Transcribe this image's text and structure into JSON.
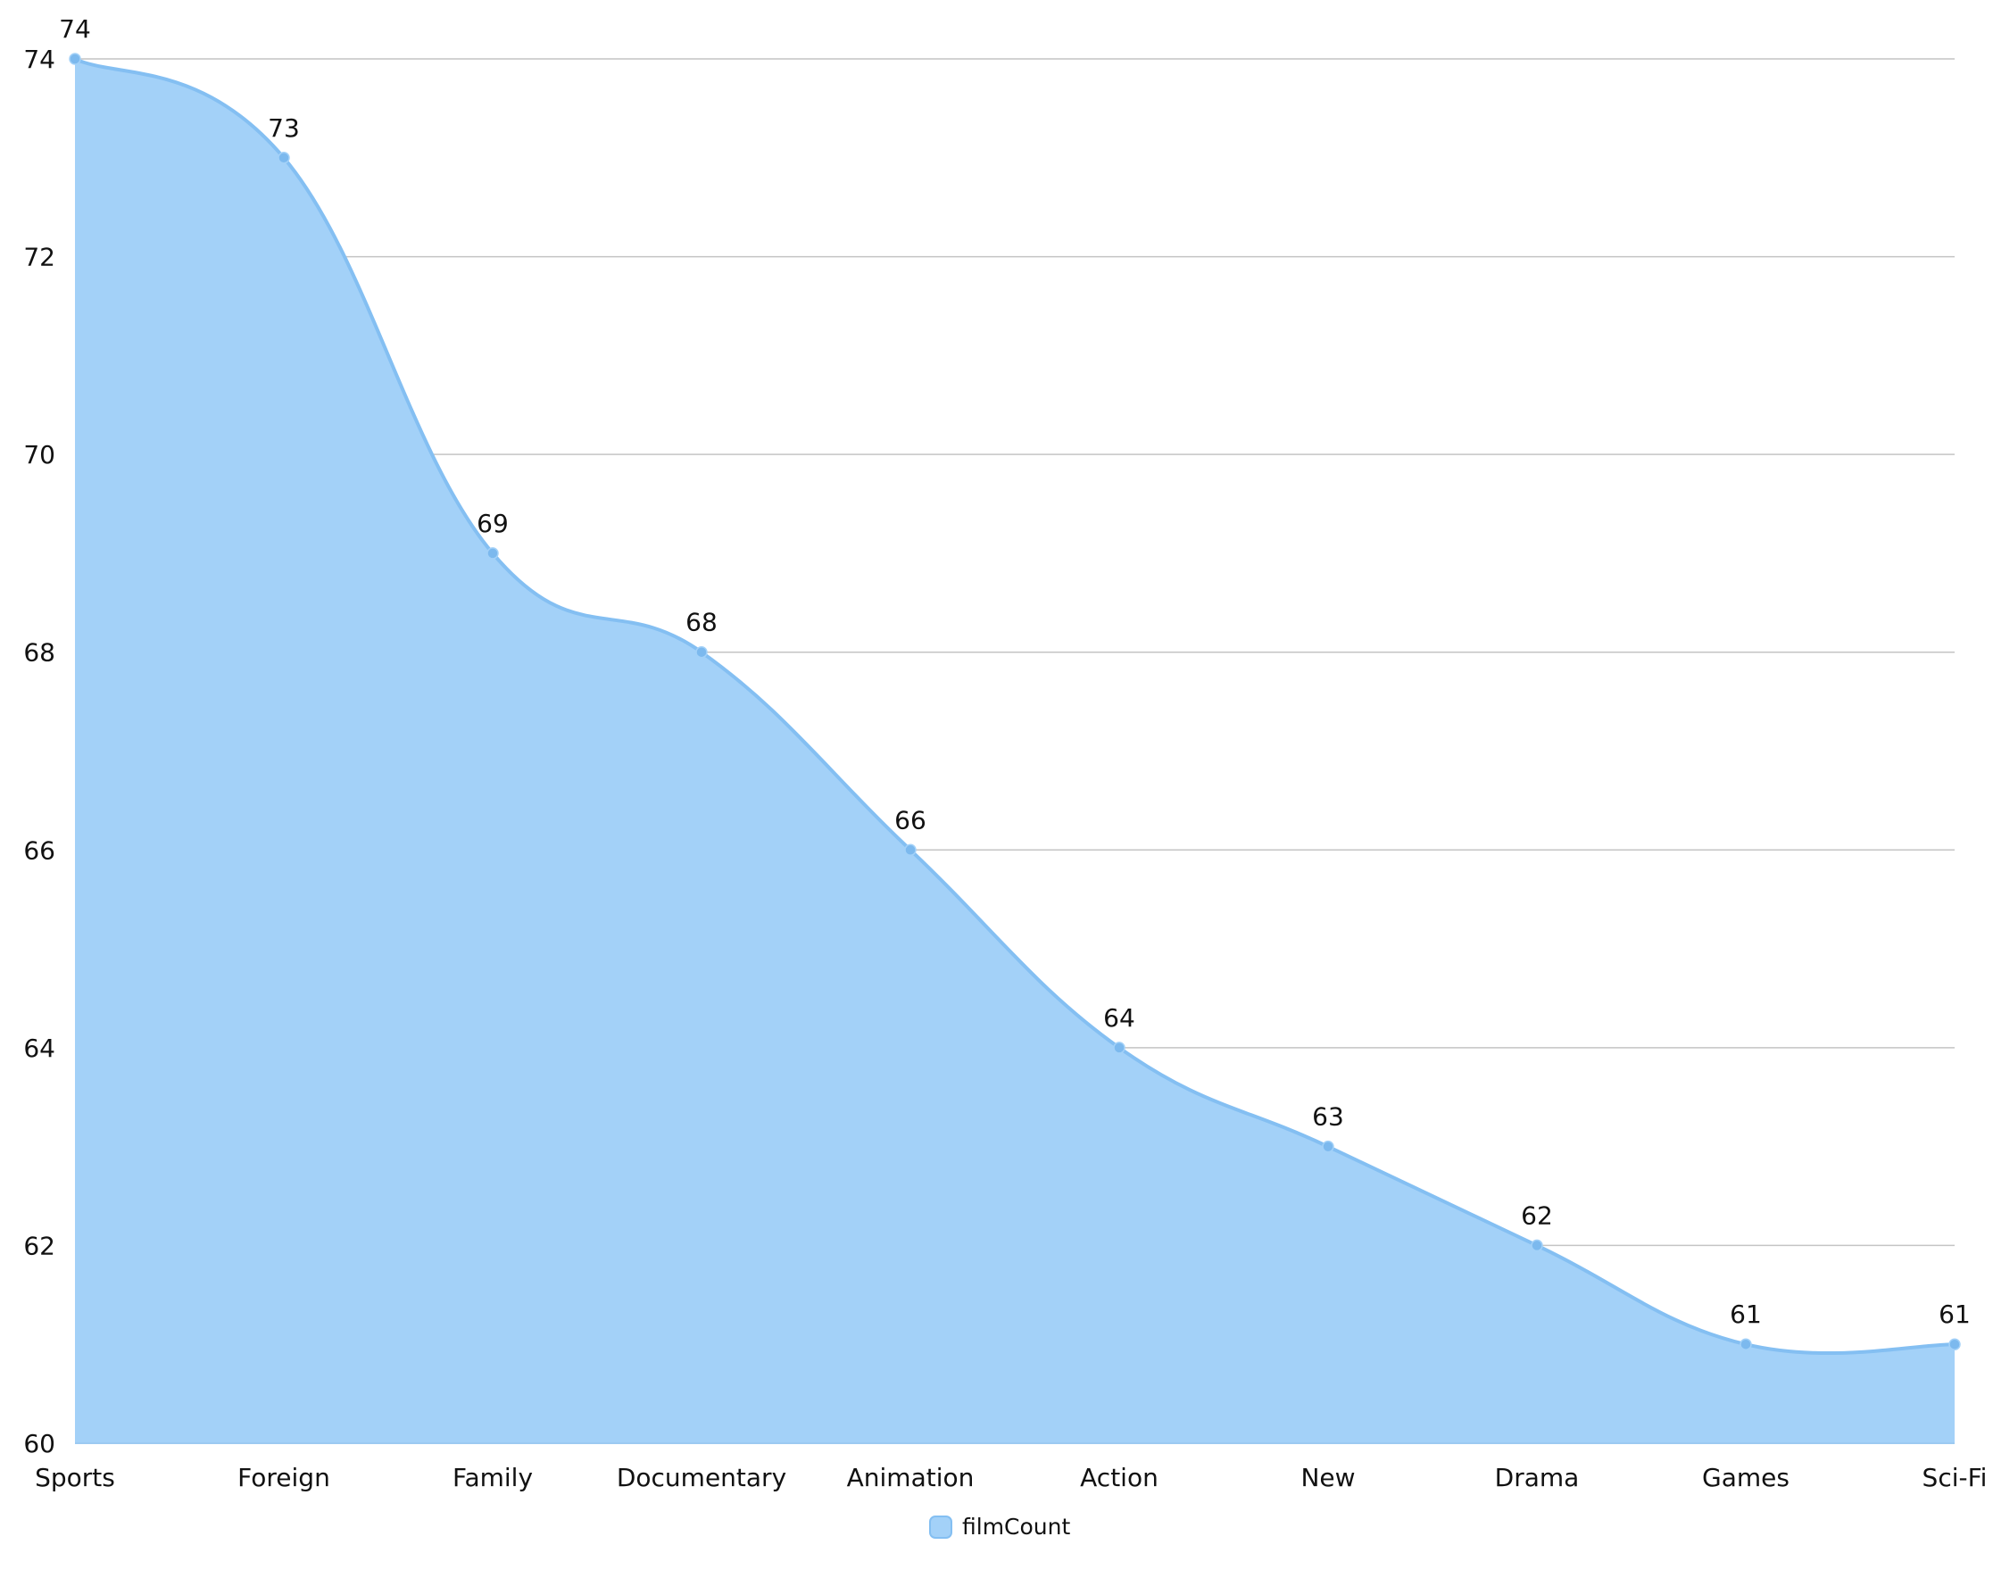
{
  "chart_data": {
    "type": "area",
    "categories": [
      "Sports",
      "Foreign",
      "Family",
      "Documentary",
      "Animation",
      "Action",
      "New",
      "Drama",
      "Games",
      "Sci-Fi"
    ],
    "series": [
      {
        "name": "filmCount",
        "values": [
          74,
          73,
          69,
          68,
          66,
          64,
          63,
          62,
          61,
          61
        ]
      }
    ],
    "y_ticks": [
      "60",
      "62",
      "64",
      "66",
      "68",
      "70",
      "72",
      "74"
    ],
    "ylim": [
      60,
      74
    ],
    "grid": true,
    "legend": "bottom-center",
    "data_labels": true,
    "colors": {
      "fill": "#a3d1f8",
      "line": "#84bff2",
      "point": "#7cb9ee",
      "grid": "#c4c4c4",
      "text": "#111111",
      "axis": "#9ccaf2"
    }
  }
}
